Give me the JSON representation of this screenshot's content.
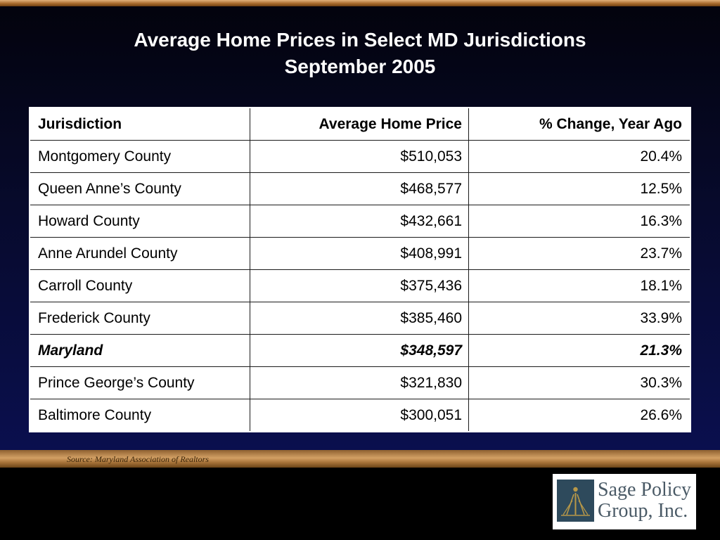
{
  "title": {
    "line1": "Average Home Prices in Select MD Jurisdictions",
    "line2": "September 2005"
  },
  "table": {
    "headers": [
      "Jurisdiction",
      "Average Home Price",
      "% Change, Year Ago"
    ],
    "rows": [
      {
        "jurisdiction": "Montgomery County",
        "price": "$510,053",
        "change": "20.4%"
      },
      {
        "jurisdiction": "Queen Anne’s County",
        "price": "$468,577",
        "change": "12.5%"
      },
      {
        "jurisdiction": "Howard County",
        "price": "$432,661",
        "change": "16.3%"
      },
      {
        "jurisdiction": "Anne Arundel County",
        "price": "$408,991",
        "change": "23.7%"
      },
      {
        "jurisdiction": "Carroll County",
        "price": "$375,436",
        "change": "18.1%"
      },
      {
        "jurisdiction": "Frederick County",
        "price": "$385,460",
        "change": "33.9%"
      },
      {
        "jurisdiction": "Maryland",
        "price": "$348,597",
        "change": "21.3%",
        "highlight": true
      },
      {
        "jurisdiction": "Prince George’s County",
        "price": "$321,830",
        "change": "30.3%"
      },
      {
        "jurisdiction": "Baltimore County",
        "price": "$300,051",
        "change": "26.6%"
      }
    ]
  },
  "source": "Source: Maryland Association of Realtors",
  "logo": {
    "line1": "Sage Policy",
    "line2": "Group, Inc."
  }
}
